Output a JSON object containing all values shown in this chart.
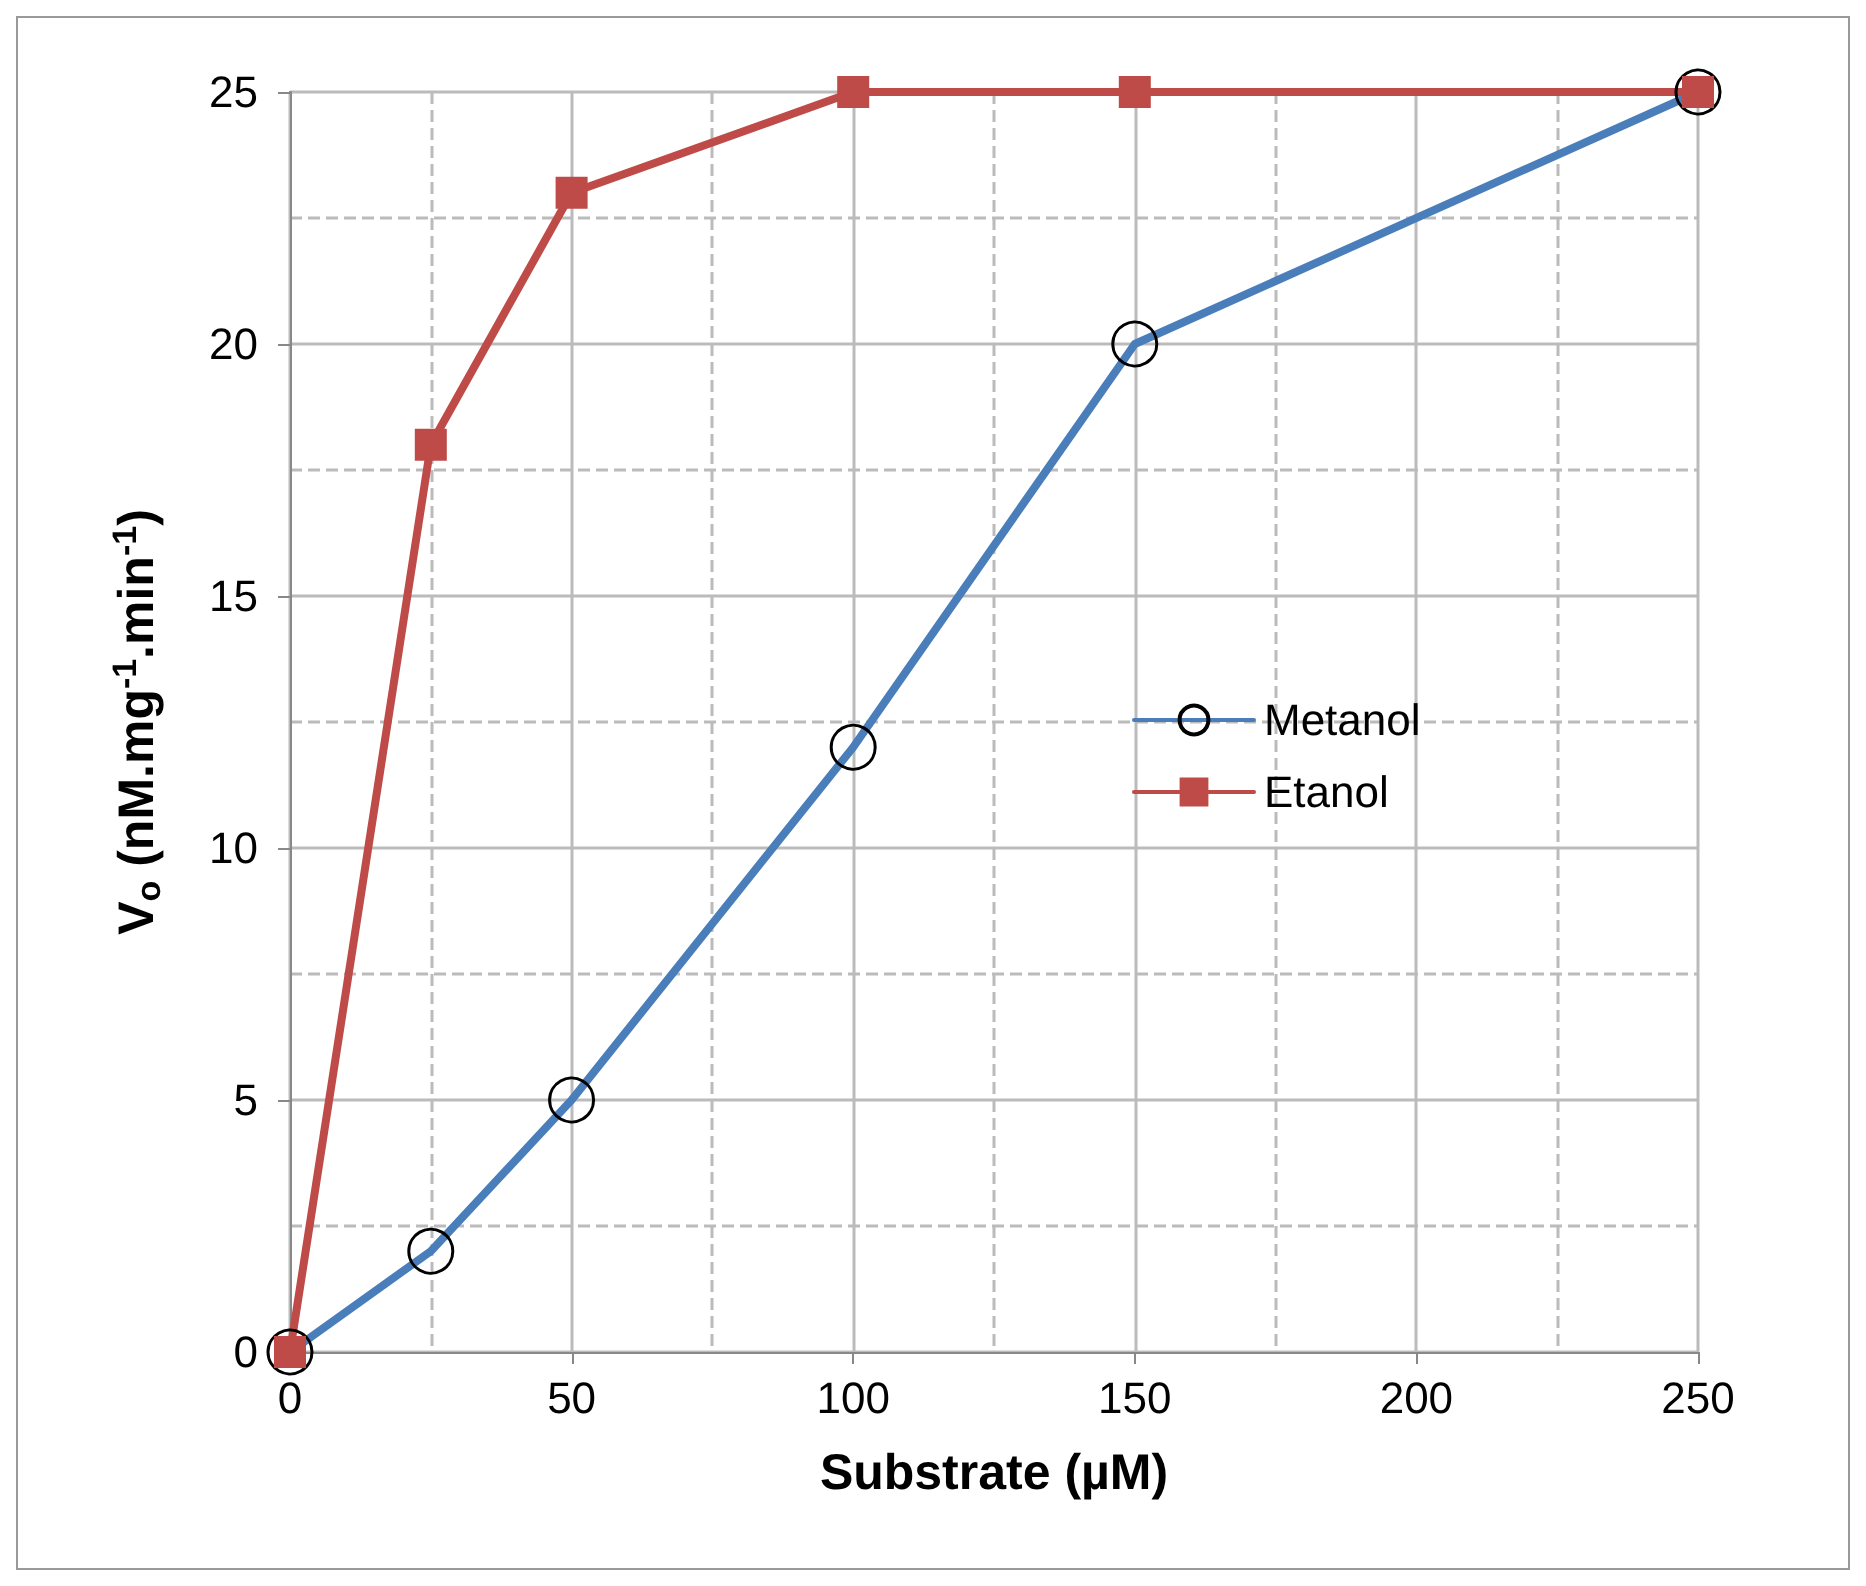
{
  "chart_data": {
    "type": "line",
    "xlabel": "Substrate (µM)",
    "ylabel": "V$_{o}$ (nM.mg$^{-1}$.min$^{-1}$)",
    "x": [
      0,
      25,
      50,
      100,
      150,
      250
    ],
    "series": [
      {
        "name": "Metanol",
        "color": "#4a7ebb",
        "marker": "circle",
        "values": [
          0,
          2,
          5,
          12,
          20,
          25
        ]
      },
      {
        "name": "Etanol",
        "color": "#be4b48",
        "marker": "square",
        "values": [
          0,
          18,
          23,
          25,
          25,
          25
        ]
      }
    ],
    "xlim": [
      0,
      250
    ],
    "xticks": [
      0,
      50,
      100,
      150,
      200,
      250
    ],
    "ylim": [
      0,
      25
    ],
    "yticks": [
      0,
      5,
      10,
      15,
      20,
      25
    ],
    "grid": true,
    "legend": "right",
    "line_style": "solid"
  }
}
